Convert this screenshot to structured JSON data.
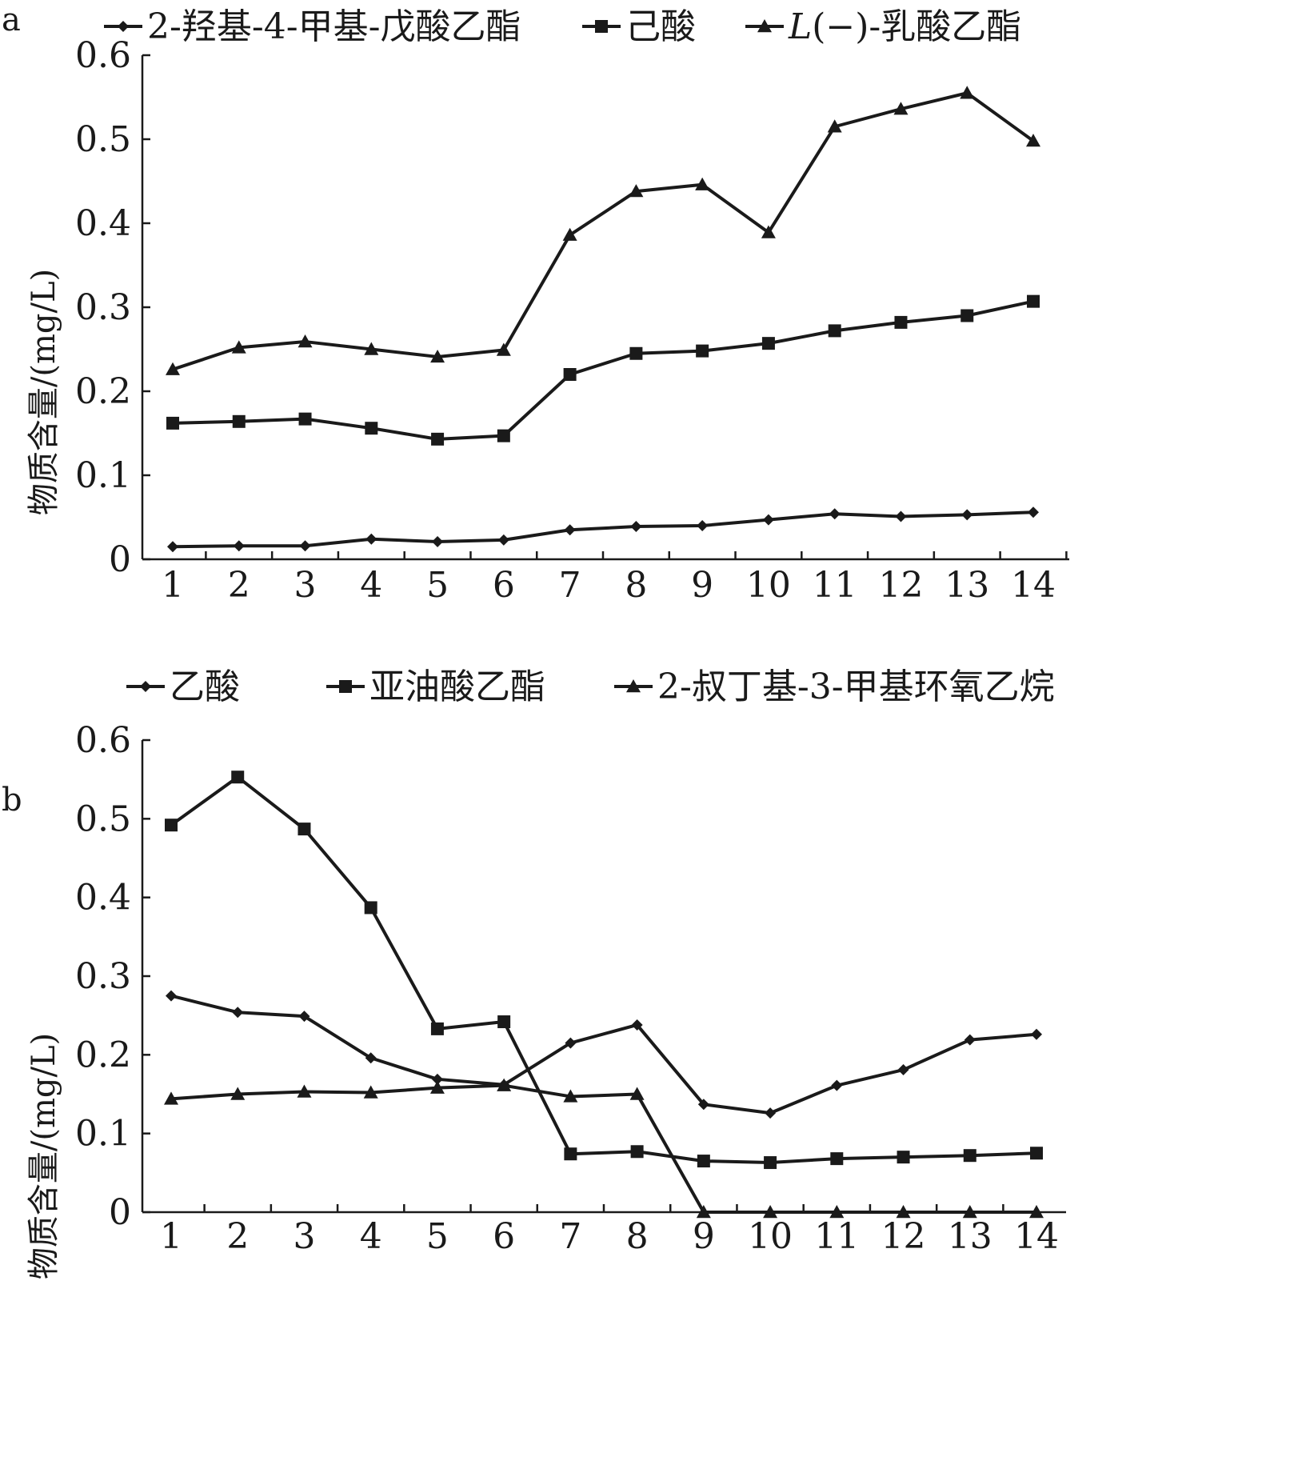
{
  "chart_data": [
    {
      "panel": "a",
      "type": "line",
      "ylabel": "物质含量/(mg/L)",
      "x": [
        1,
        2,
        3,
        4,
        5,
        6,
        7,
        8,
        9,
        10,
        11,
        12,
        13,
        14
      ],
      "ylim": [
        0,
        0.6
      ],
      "yticks": [
        "0",
        "0.1",
        "0.2",
        "0.3",
        "0.4",
        "0.5",
        "0.6"
      ],
      "legend_position": "top",
      "series": [
        {
          "name": "2-羟基-4-甲基-戊酸乙酯",
          "marker": "diamond",
          "values": [
            0.015,
            0.016,
            0.016,
            0.024,
            0.021,
            0.023,
            0.035,
            0.039,
            0.04,
            0.047,
            0.054,
            0.051,
            0.053,
            0.056
          ]
        },
        {
          "name": "己酸",
          "marker": "square",
          "values": [
            0.162,
            0.164,
            0.167,
            0.156,
            0.143,
            0.147,
            0.22,
            0.245,
            0.248,
            0.257,
            0.272,
            0.282,
            0.29,
            0.307
          ]
        },
        {
          "name": "L(−)-乳酸乙酯",
          "marker": "triangle",
          "values": [
            0.226,
            0.252,
            0.259,
            0.25,
            0.241,
            0.249,
            0.386,
            0.438,
            0.446,
            0.389,
            0.515,
            0.536,
            0.555,
            0.498
          ]
        }
      ]
    },
    {
      "panel": "b",
      "type": "line",
      "ylabel": "物质含量/(mg/L)",
      "x": [
        1,
        2,
        3,
        4,
        5,
        6,
        7,
        8,
        9,
        10,
        11,
        12,
        13,
        14
      ],
      "ylim": [
        0,
        0.6
      ],
      "yticks": [
        "0",
        "0.1",
        "0.2",
        "0.3",
        "0.4",
        "0.5",
        "0.6"
      ],
      "legend_position": "top",
      "series": [
        {
          "name": "乙酸",
          "marker": "diamond",
          "values": [
            0.275,
            0.254,
            0.249,
            0.196,
            0.169,
            0.162,
            0.215,
            0.238,
            0.137,
            0.126,
            0.161,
            0.181,
            0.219,
            0.226
          ]
        },
        {
          "name": "亚油酸乙酯",
          "marker": "square",
          "values": [
            0.492,
            0.553,
            0.487,
            0.387,
            0.233,
            0.242,
            0.074,
            0.077,
            0.065,
            0.063,
            0.068,
            0.07,
            0.072,
            0.075
          ]
        },
        {
          "name": "2-叔丁基-3-甲基环氧乙烷",
          "marker": "triangle",
          "values": [
            0.144,
            0.15,
            0.153,
            0.152,
            0.158,
            0.161,
            0.147,
            0.15,
            0.0,
            0.0,
            0.0,
            0.0,
            0.0,
            0.0
          ]
        }
      ]
    }
  ]
}
